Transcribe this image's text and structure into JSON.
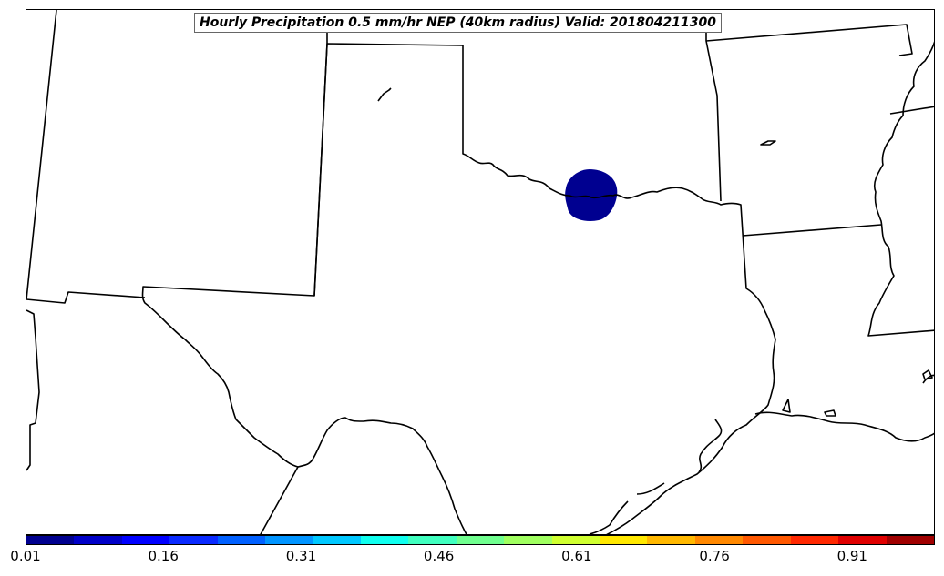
{
  "title": "Hourly Precipitation 0.5 mm/hr NEP (40km radius) Valid: 201804211300",
  "colorbar": {
    "colors": [
      "#00008f",
      "#0000c8",
      "#0000ff",
      "#0a2aff",
      "#0060ff",
      "#0094ff",
      "#00c8ff",
      "#10ffef",
      "#40ffbf",
      "#70ff8f",
      "#a0ff60",
      "#d0ff30",
      "#ffe800",
      "#ffb800",
      "#ff8800",
      "#ff5800",
      "#ff2800",
      "#e00000",
      "#a00000"
    ],
    "tick_labels": [
      "0.01",
      "0.16",
      "0.31",
      "0.46",
      "0.61",
      "0.76",
      "0.91"
    ],
    "range": [
      0.01,
      1.0
    ]
  },
  "precip_area": {
    "value_color": "#000090",
    "description_level": 0.01
  }
}
